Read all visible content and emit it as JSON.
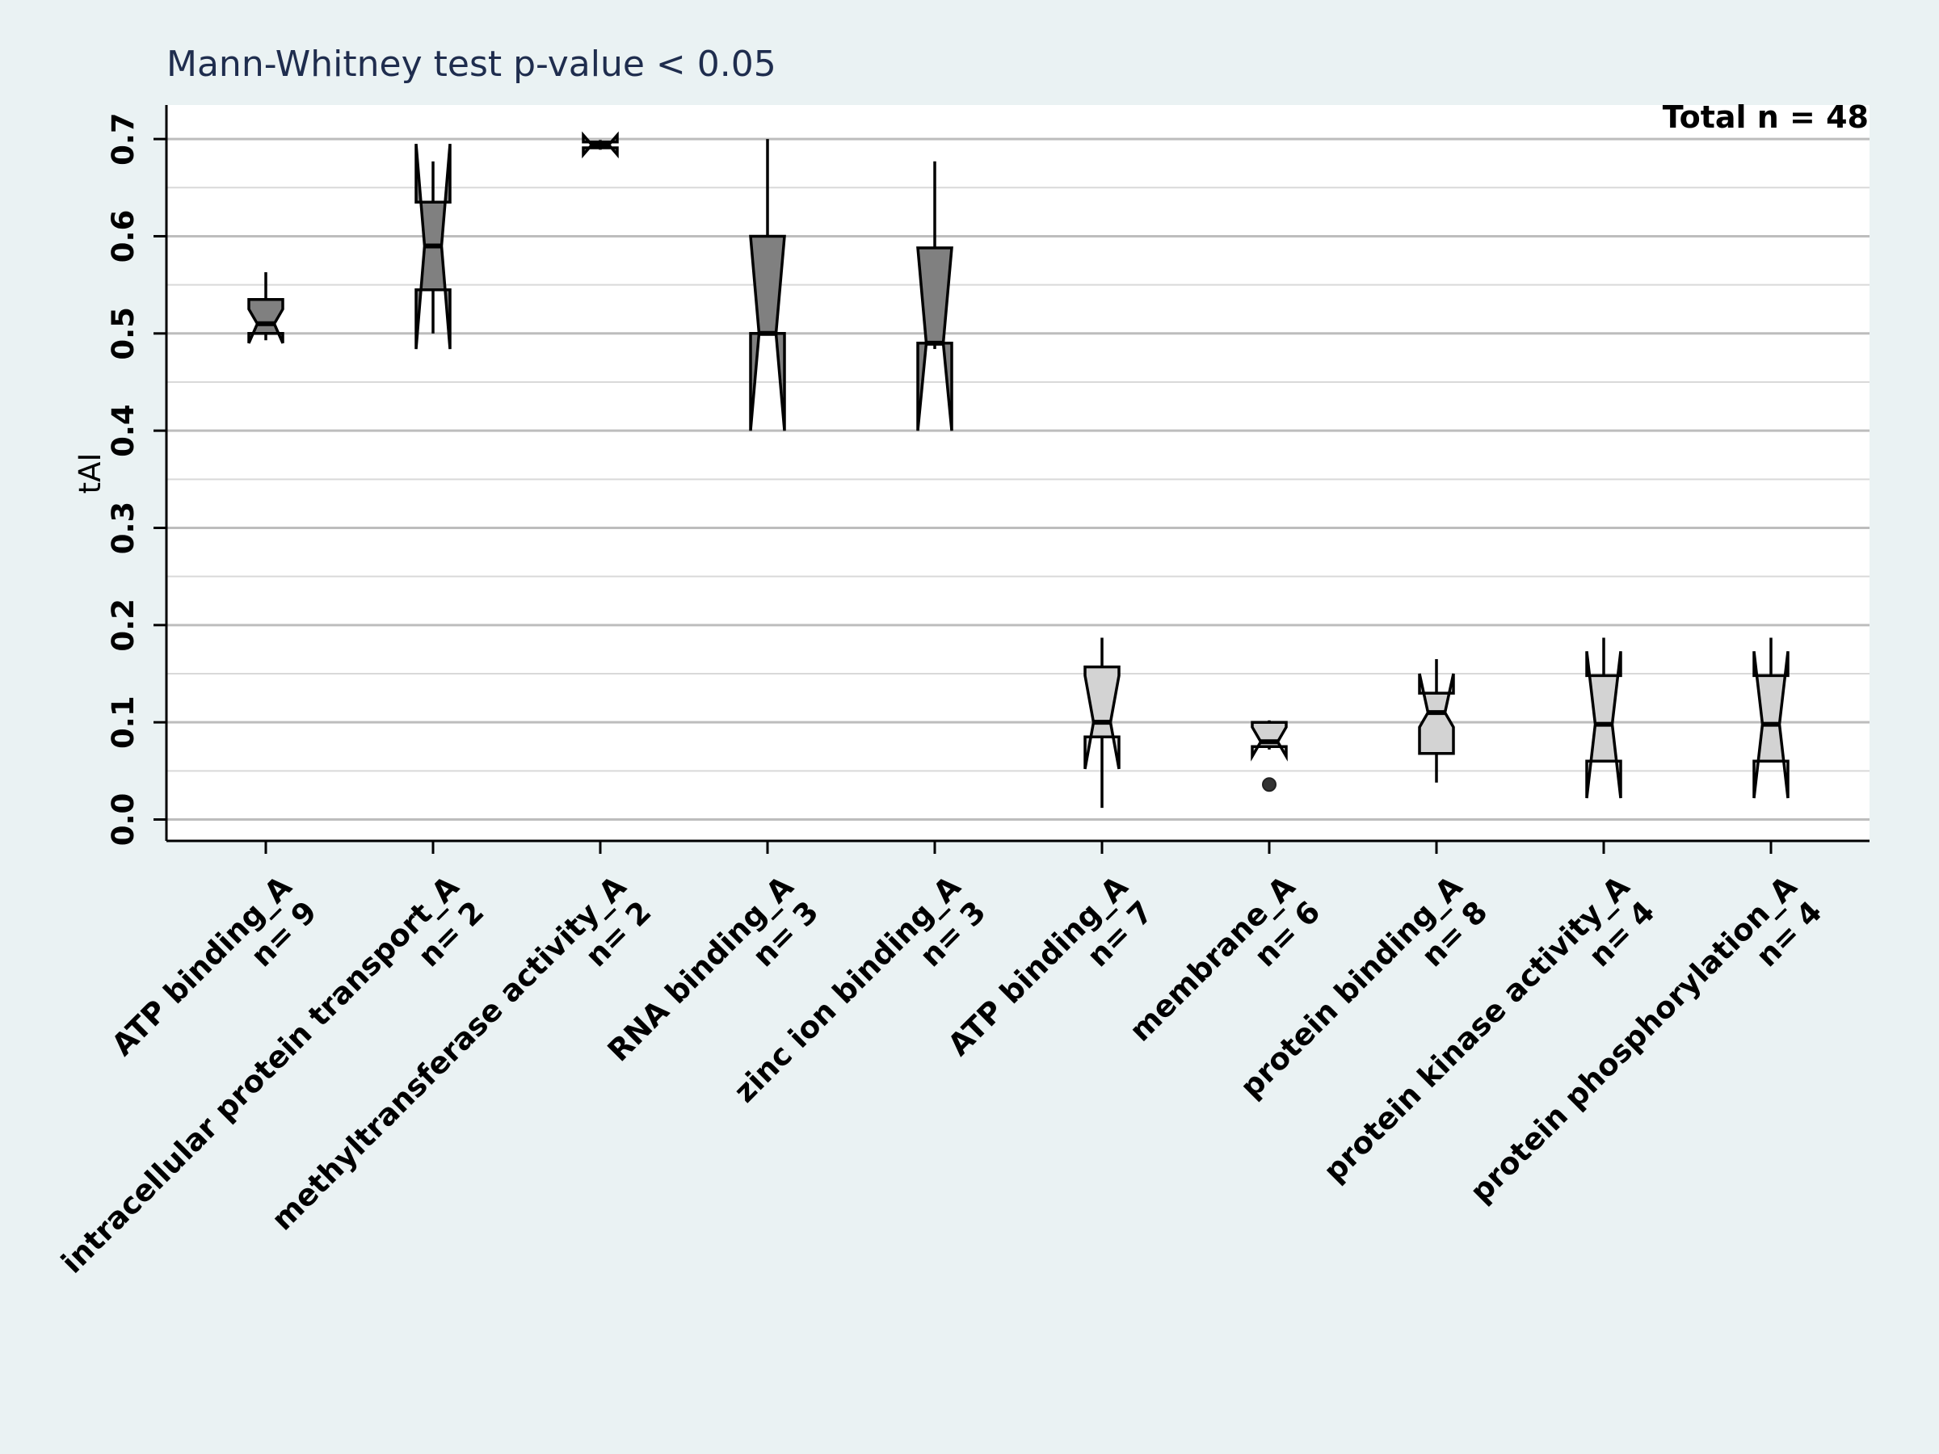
{
  "chart_data": {
    "type": "boxplot",
    "title": "Mann-Whitney test  p-value < 0.05",
    "annotation": "Total n = 48",
    "ylabel": "tAI",
    "xlabel": "",
    "ylim": [
      -0.022,
      0.735
    ],
    "yticks": [
      "0.0",
      "0.1",
      "0.2",
      "0.3",
      "0.4",
      "0.5",
      "0.6",
      "0.7"
    ],
    "grid": true,
    "notched": true,
    "colors": {
      "group_1": "#808080",
      "group_2": "#d3d3d3",
      "grid_major": "#bdbdbd",
      "grid_minor": "#d9d9d9"
    },
    "categories": [
      {
        "label": "ATP binding_A",
        "n": "n= 9",
        "group": 1,
        "q1": 0.5,
        "median": 0.51,
        "q3": 0.535,
        "whisker_low": 0.493,
        "whisker_high": 0.563,
        "notch_low": 0.49,
        "notch_high": 0.525,
        "outliers": []
      },
      {
        "label": "intracellular protein transport_A",
        "n": "n= 2",
        "group": 1,
        "q1": 0.545,
        "median": 0.59,
        "q3": 0.635,
        "whisker_low": 0.5,
        "whisker_high": 0.677,
        "notch_low": 0.484,
        "notch_high": 0.695,
        "outliers": []
      },
      {
        "label": "methyltransferase activity_A",
        "n": "n= 2",
        "group": 1,
        "q1": 0.691,
        "median": 0.694,
        "q3": 0.697,
        "whisker_low": 0.689,
        "whisker_high": 0.699,
        "notch_low": 0.684,
        "notch_high": 0.704,
        "outliers": []
      },
      {
        "label": "RNA binding_A",
        "n": "n= 3",
        "group": 1,
        "q1": 0.5,
        "median": 0.5,
        "q3": 0.6,
        "whisker_low": 0.5,
        "whisker_high": 0.7,
        "notch_low": 0.4,
        "notch_high": 0.6,
        "outliers": []
      },
      {
        "label": "zinc ion binding_A",
        "n": "n= 3",
        "group": 1,
        "q1": 0.49,
        "median": 0.49,
        "q3": 0.588,
        "whisker_low": 0.484,
        "whisker_high": 0.677,
        "notch_low": 0.4,
        "notch_high": 0.588,
        "outliers": []
      },
      {
        "label": "ATP binding_A",
        "n": "n= 7",
        "group": 2,
        "q1": 0.085,
        "median": 0.1,
        "q3": 0.157,
        "whisker_low": 0.012,
        "whisker_high": 0.187,
        "notch_low": 0.052,
        "notch_high": 0.148,
        "outliers": []
      },
      {
        "label": "membrane_A",
        "n": "n= 6",
        "group": 2,
        "q1": 0.075,
        "median": 0.08,
        "q3": 0.1,
        "whisker_low": 0.072,
        "whisker_high": 0.102,
        "notch_low": 0.065,
        "notch_high": 0.095,
        "outliers": [
          0.036
        ]
      },
      {
        "label": "protein binding_A",
        "n": "n= 8",
        "group": 2,
        "q1": 0.068,
        "median": 0.11,
        "q3": 0.13,
        "whisker_low": 0.038,
        "whisker_high": 0.165,
        "notch_low": 0.095,
        "notch_high": 0.15,
        "outliers": []
      },
      {
        "label": "protein kinase activity_A",
        "n": "n= 4",
        "group": 2,
        "q1": 0.06,
        "median": 0.098,
        "q3": 0.148,
        "whisker_low": 0.06,
        "whisker_high": 0.187,
        "notch_low": 0.022,
        "notch_high": 0.173,
        "outliers": []
      },
      {
        "label": "protein phosphorylation_A",
        "n": "n= 4",
        "group": 2,
        "q1": 0.06,
        "median": 0.098,
        "q3": 0.148,
        "whisker_low": 0.06,
        "whisker_high": 0.187,
        "notch_low": 0.022,
        "notch_high": 0.173,
        "outliers": []
      }
    ]
  }
}
